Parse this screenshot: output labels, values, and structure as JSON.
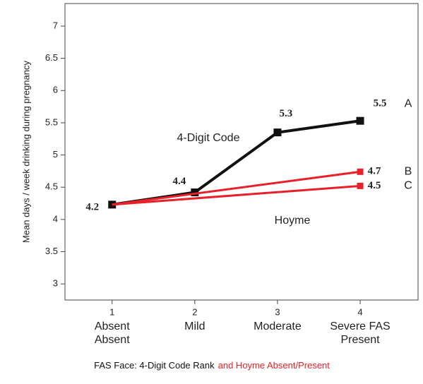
{
  "chart_data": {
    "type": "line",
    "ylabel": "Mean days / week drinking during pregnancy",
    "xlabel": [
      "FAS Face: 4-Digit Code Rank",
      "and Hoyme Absent/Present"
    ],
    "xlabel_colors": [
      "#111111",
      "#e8202a"
    ],
    "xticks": [
      1,
      2,
      3,
      4
    ],
    "xlim": [
      0.43,
      4.7
    ],
    "x_labels": [
      "Absent",
      "Mild",
      "Moderate",
      "Severe FAS"
    ],
    "hoyme_labels": [
      "Absent",
      null,
      null,
      "Present"
    ],
    "hoyme_color": "#e8202a",
    "ylim": [
      2.75,
      7.35
    ],
    "yticks": [
      3,
      3.5,
      4,
      4.5,
      5,
      5.5,
      6,
      6.5,
      7
    ],
    "annotations": [
      {
        "text": "4-Digit Code",
        "color": "#111111"
      },
      {
        "text": "Hoyme",
        "color": "#e8202a"
      }
    ],
    "series": [
      {
        "name": "A",
        "color": "#111111",
        "x": [
          1,
          2,
          3,
          4
        ],
        "values": [
          4.23,
          4.42,
          5.35,
          5.53
        ],
        "value_labels": [
          "4.2",
          "4.4",
          "5.3",
          "5.5"
        ]
      },
      {
        "name": "B",
        "color": "#e8202a",
        "x": [
          1,
          4
        ],
        "values": [
          4.23,
          4.74
        ],
        "value_labels": [
          null,
          "4.7"
        ]
      },
      {
        "name": "C",
        "color": "#e8202a",
        "x": [
          1,
          4
        ],
        "values": [
          4.23,
          4.52
        ],
        "value_labels": [
          null,
          "4.5"
        ]
      }
    ]
  }
}
